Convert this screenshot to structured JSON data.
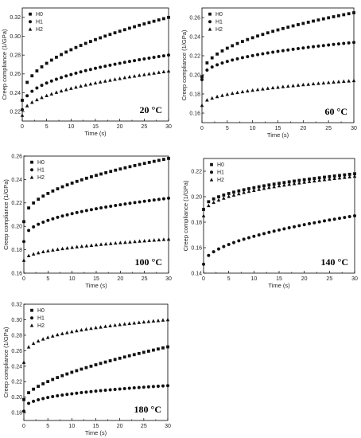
{
  "chart_data": [
    {
      "type": "scatter",
      "temperature_label": "20 °C",
      "xlabel": "Time (s)",
      "ylabel": "Creep compliance (1/GPa)",
      "xlim": [
        0,
        30
      ],
      "ylim": [
        0.21,
        0.33
      ],
      "xticks": [
        "0",
        "5",
        "10",
        "15",
        "20",
        "25",
        "30"
      ],
      "yticks": [
        "0.22",
        "0.24",
        "0.26",
        "0.28",
        "0.30",
        "0.32"
      ],
      "legend_position": "top-left",
      "series": [
        {
          "name": "H0",
          "marker": "square",
          "start": 0.232,
          "end": 0.32,
          "gamma": 0.45
        },
        {
          "name": "H1",
          "marker": "circle",
          "start": 0.222,
          "end": 0.28,
          "gamma": 0.4
        },
        {
          "name": "H2",
          "marker": "triangle",
          "start": 0.216,
          "end": 0.263,
          "gamma": 0.45
        }
      ]
    },
    {
      "type": "scatter",
      "temperature_label": "60 °C",
      "xlabel": "Time (s)",
      "ylabel": "Creep compliance (1/GPa)",
      "xlim": [
        0,
        30
      ],
      "ylim": [
        0.15,
        0.27
      ],
      "xticks": [
        "0",
        "5",
        "10",
        "15",
        "20",
        "25",
        "30"
      ],
      "yticks": [
        "0.16",
        "0.18",
        "0.20",
        "0.22",
        "0.24",
        "0.26"
      ],
      "legend_position": "top-left",
      "series": [
        {
          "name": "H0",
          "marker": "square",
          "start": 0.198,
          "end": 0.265,
          "gamma": 0.45
        },
        {
          "name": "H1",
          "marker": "circle",
          "start": 0.195,
          "end": 0.234,
          "gamma": 0.4
        },
        {
          "name": "H2",
          "marker": "triangle",
          "start": 0.168,
          "end": 0.194,
          "gamma": 0.45
        }
      ]
    },
    {
      "type": "scatter",
      "temperature_label": "100 °C",
      "xlabel": "Time (s)",
      "ylabel": "Creep compliance (1/GPa)",
      "xlim": [
        0,
        30
      ],
      "ylim": [
        0.16,
        0.26
      ],
      "xticks": [
        "0",
        "5",
        "10",
        "15",
        "20",
        "25",
        "30"
      ],
      "yticks": [
        "0.16",
        "0.18",
        "0.20",
        "0.22",
        "0.24",
        "0.26"
      ],
      "legend_position": "top-left",
      "series": [
        {
          "name": "H0",
          "marker": "square",
          "start": 0.204,
          "end": 0.258,
          "gamma": 0.45
        },
        {
          "name": "H1",
          "marker": "circle",
          "start": 0.187,
          "end": 0.224,
          "gamma": 0.4
        },
        {
          "name": "H2",
          "marker": "triangle",
          "start": 0.171,
          "end": 0.189,
          "gamma": 0.45
        }
      ]
    },
    {
      "type": "scatter",
      "temperature_label": "140 °C",
      "xlabel": "Time (s)",
      "ylabel": "Creep compliance (1/GPa)",
      "xlim": [
        0,
        30
      ],
      "ylim": [
        0.14,
        0.23
      ],
      "xticks": [
        "0",
        "5",
        "10",
        "15",
        "20",
        "25",
        "30"
      ],
      "yticks": [
        "0.14",
        "0.16",
        "0.18",
        "0.20",
        "0.22"
      ],
      "legend_position": "top-left",
      "series": [
        {
          "name": "H0",
          "marker": "square",
          "start": 0.19,
          "end": 0.218,
          "gamma": 0.45
        },
        {
          "name": "H1",
          "marker": "circle",
          "start": 0.147,
          "end": 0.185,
          "gamma": 0.5
        },
        {
          "name": "H2",
          "marker": "triangle",
          "start": 0.185,
          "end": 0.216,
          "gamma": 0.4
        }
      ]
    },
    {
      "type": "scatter",
      "temperature_label": "180 °C",
      "xlabel": "Time (s)",
      "ylabel": "Creep compliance (1/GPa)",
      "xlim": [
        0,
        30
      ],
      "ylim": [
        0.17,
        0.32
      ],
      "xticks": [
        "0",
        "5",
        "10",
        "15",
        "20",
        "25",
        "30"
      ],
      "yticks": [
        "0.18",
        "0.20",
        "0.22",
        "0.24",
        "0.26",
        "0.28",
        "0.30",
        "0.32"
      ],
      "legend_position": "top-left",
      "series": [
        {
          "name": "H0",
          "marker": "square",
          "start": 0.197,
          "end": 0.265,
          "gamma": 0.6
        },
        {
          "name": "H1",
          "marker": "circle",
          "start": 0.182,
          "end": 0.215,
          "gamma": 0.35
        },
        {
          "name": "H2",
          "marker": "triangle",
          "start": 0.245,
          "end": 0.3,
          "gamma": 0.3
        }
      ]
    }
  ]
}
